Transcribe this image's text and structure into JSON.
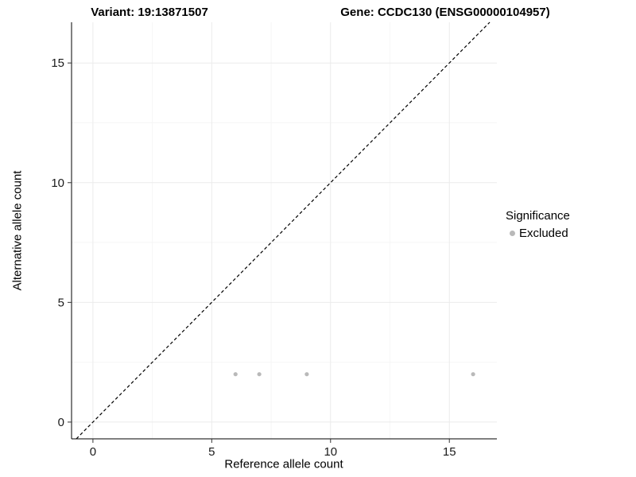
{
  "page": {
    "background": "#ffffff"
  },
  "chart_data": {
    "type": "scatter",
    "titles": {
      "left": "Variant: 19:13871507",
      "right": "Gene: CCDC130 (ENSG00000104957)"
    },
    "xlabel": "Reference allele count",
    "ylabel": "Alternative allele count",
    "xlim": [
      -0.9,
      17.0
    ],
    "ylim": [
      -0.7,
      16.7
    ],
    "xticks": [
      0,
      5,
      10,
      15
    ],
    "yticks": [
      0,
      5,
      10,
      15
    ],
    "minor_xticks": [
      2.5,
      7.5,
      12.5
    ],
    "minor_yticks": [
      2.5,
      7.5,
      12.5
    ],
    "grid": true,
    "identity_line": {
      "style": "dashed",
      "color": "#000000",
      "from": -0.7,
      "to": 16.7
    },
    "series": [
      {
        "name": "Excluded",
        "color": "#b9b9b9",
        "points": [
          [
            6,
            2
          ],
          [
            7,
            2
          ],
          [
            9,
            2
          ],
          [
            16,
            2
          ]
        ]
      }
    ],
    "legend": {
      "title": "Significance",
      "position": "right",
      "items": [
        {
          "label": "Excluded",
          "color": "#b9b9b9"
        }
      ]
    },
    "colors": {
      "grid_major": "#ebebeb",
      "grid_minor": "#f6f6f6",
      "axis": "#000000",
      "tick_mark": "#333333",
      "tick_text": "#1a1a1a"
    }
  }
}
